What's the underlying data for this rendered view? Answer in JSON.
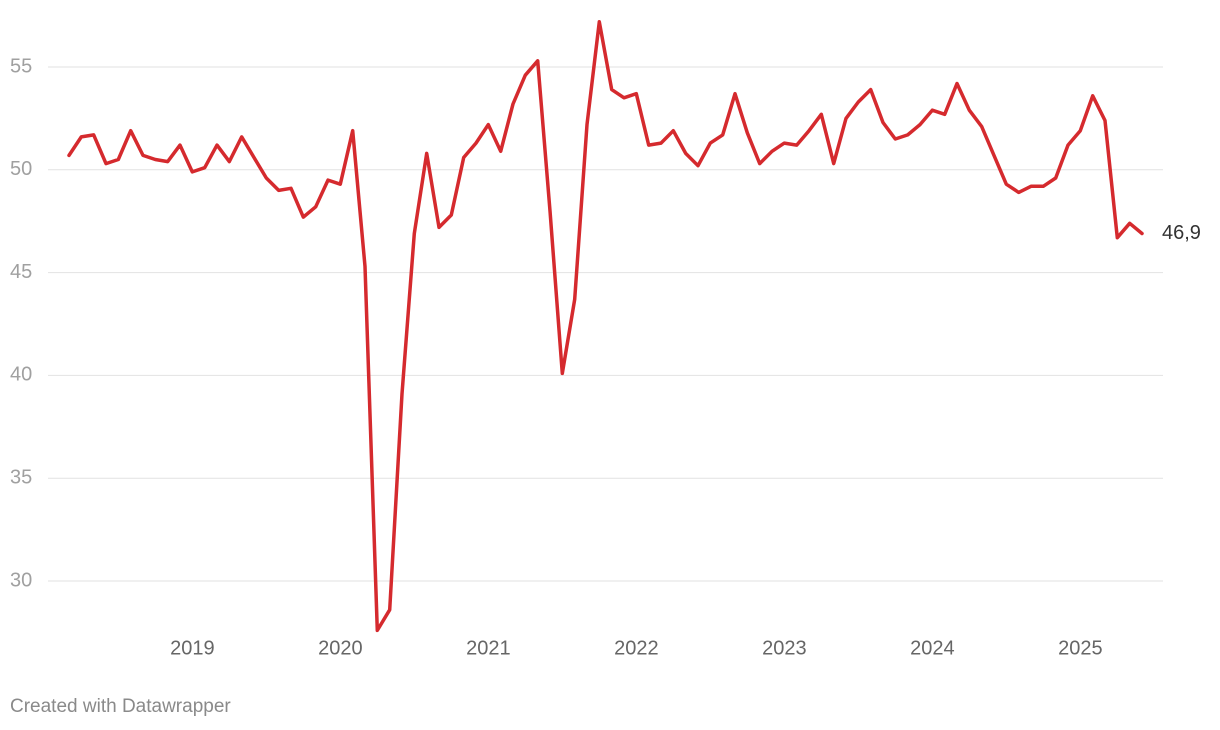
{
  "chart_data": {
    "type": "line",
    "categories": [
      null,
      null,
      null,
      null,
      null,
      null,
      null,
      null,
      null,
      null,
      "2019",
      null,
      null,
      null,
      null,
      null,
      null,
      null,
      null,
      null,
      null,
      null,
      "2020",
      null,
      null,
      null,
      null,
      null,
      null,
      null,
      null,
      null,
      null,
      null,
      "2021",
      null,
      null,
      null,
      null,
      null,
      null,
      null,
      null,
      null,
      null,
      null,
      "2022",
      null,
      null,
      null,
      null,
      null,
      null,
      null,
      null,
      null,
      null,
      null,
      "2023",
      null,
      null,
      null,
      null,
      null,
      null,
      null,
      null,
      null,
      null,
      null,
      "2024",
      null,
      null,
      null,
      null,
      null,
      null,
      null,
      null,
      null,
      null,
      null,
      "2025",
      null,
      null,
      null,
      null,
      null
    ],
    "series": [
      {
        "color": "#d52a2e",
        "values": [
          50.7,
          51.6,
          51.7,
          50.3,
          50.5,
          51.9,
          50.7,
          50.5,
          50.4,
          51.2,
          49.9,
          50.1,
          51.2,
          50.4,
          51.6,
          50.6,
          49.6,
          49.0,
          49.1,
          47.7,
          48.2,
          49.5,
          49.3,
          51.9,
          45.3,
          27.6,
          28.6,
          39.1,
          46.9,
          50.8,
          47.2,
          47.8,
          50.6,
          51.3,
          52.2,
          50.9,
          53.2,
          54.6,
          55.3,
          48.0,
          40.1,
          43.7,
          52.2,
          57.2,
          53.9,
          53.5,
          53.7,
          51.2,
          51.3,
          51.9,
          50.8,
          50.2,
          51.3,
          51.7,
          53.7,
          51.8,
          50.3,
          50.9,
          51.3,
          51.2,
          51.9,
          52.7,
          50.3,
          52.5,
          53.3,
          53.9,
          52.3,
          51.5,
          51.7,
          52.2,
          52.9,
          52.7,
          54.2,
          52.9,
          52.1,
          50.7,
          49.3,
          48.9,
          49.2,
          49.2,
          49.6,
          51.2,
          51.9,
          53.6,
          52.4,
          46.7,
          47.4,
          46.9
        ],
        "value_labels": [
          null,
          null,
          null,
          null,
          null,
          null,
          null,
          null,
          null,
          null,
          null,
          null,
          null,
          null,
          null,
          null,
          null,
          null,
          null,
          null,
          null,
          null,
          null,
          null,
          null,
          null,
          null,
          null,
          null,
          null,
          null,
          null,
          null,
          null,
          null,
          null,
          null,
          null,
          null,
          null,
          null,
          null,
          null,
          null,
          null,
          null,
          null,
          null,
          null,
          null,
          null,
          null,
          null,
          null,
          null,
          null,
          null,
          null,
          null,
          null,
          null,
          null,
          null,
          null,
          null,
          null,
          null,
          null,
          null,
          null,
          null,
          null,
          null,
          null,
          null,
          null,
          null,
          null,
          null,
          null,
          null,
          null,
          null,
          null,
          null,
          null,
          null,
          "46,9"
        ]
      }
    ],
    "ylim": [
      27,
      57.5
    ],
    "yticks": [
      30,
      35,
      40,
      45,
      50,
      55
    ],
    "grid": true,
    "credit": "Created with Datawrapper"
  }
}
